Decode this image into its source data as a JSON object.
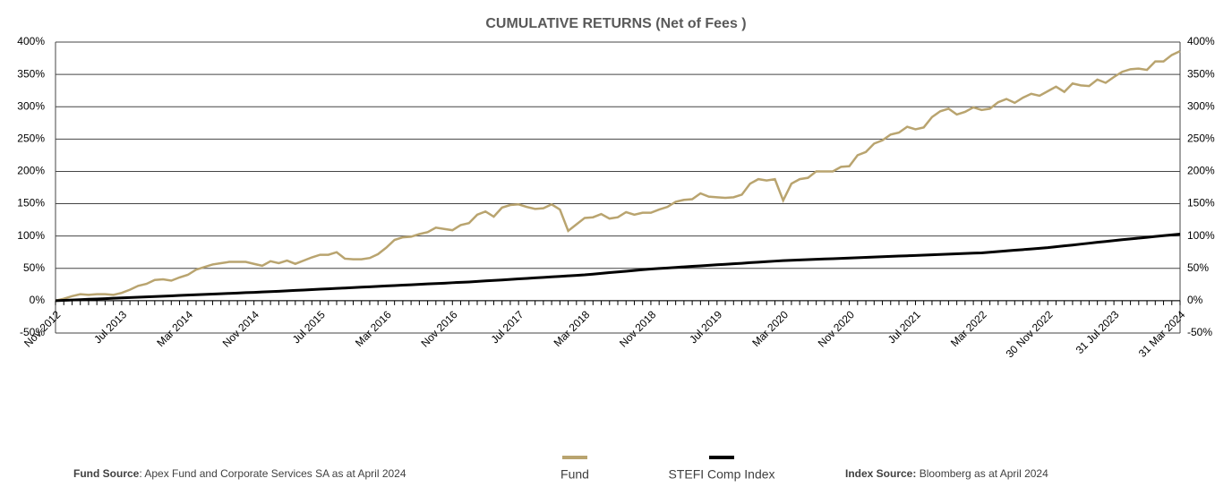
{
  "chart_data": {
    "type": "line",
    "title": "CUMULATIVE RETURNS (Net of Fees )",
    "categories": [
      "Nov 2012",
      null,
      null,
      null,
      null,
      null,
      null,
      null,
      "Jul 2013",
      null,
      null,
      null,
      null,
      null,
      null,
      null,
      "Mar 2014",
      null,
      null,
      null,
      null,
      null,
      null,
      null,
      "Nov 2014",
      null,
      null,
      null,
      null,
      null,
      null,
      null,
      "Jul 2015",
      null,
      null,
      null,
      null,
      null,
      null,
      null,
      "Mar 2016",
      null,
      null,
      null,
      null,
      null,
      null,
      null,
      "Nov 2016",
      null,
      null,
      null,
      null,
      null,
      null,
      null,
      "Jul 2017",
      null,
      null,
      null,
      null,
      null,
      null,
      null,
      "Mar 2018",
      null,
      null,
      null,
      null,
      null,
      null,
      null,
      "Nov 2018",
      null,
      null,
      null,
      null,
      null,
      null,
      null,
      "Jul 2019",
      null,
      null,
      null,
      null,
      null,
      null,
      null,
      "Mar 2020",
      null,
      null,
      null,
      null,
      null,
      null,
      null,
      "Nov 2020",
      null,
      null,
      null,
      null,
      null,
      null,
      null,
      "Jul 2021",
      null,
      null,
      null,
      null,
      null,
      null,
      null,
      "Mar 2022",
      null,
      null,
      null,
      null,
      null,
      null,
      null,
      "30 Nov 2022",
      null,
      null,
      null,
      null,
      null,
      null,
      null,
      "31 Jul 2023",
      null,
      null,
      null,
      null,
      null,
      null,
      null,
      "31 Mar 2024"
    ],
    "series": [
      {
        "name": "Fund",
        "color": "#b9a46f",
        "values": [
          0,
          3,
          7,
          10,
          9,
          10,
          10,
          9,
          12,
          17,
          23,
          26,
          32,
          33,
          31,
          36,
          40,
          48,
          52,
          56,
          58,
          60,
          60,
          60,
          57,
          54,
          61,
          58,
          62,
          57,
          62,
          67,
          71,
          71,
          75,
          65,
          64,
          64,
          66,
          72,
          82,
          94,
          98,
          99,
          103,
          106,
          113,
          111,
          109,
          117,
          120,
          133,
          138,
          130,
          144,
          148,
          149,
          145,
          142,
          143,
          149,
          141,
          108,
          118,
          128,
          129,
          134,
          127,
          129,
          137,
          133,
          136,
          136,
          141,
          145,
          153,
          156,
          157,
          166,
          161,
          160,
          159,
          160,
          164,
          181,
          188,
          186,
          188,
          155,
          181,
          188,
          190,
          200,
          200,
          200,
          207,
          208,
          225,
          230,
          243,
          248,
          257,
          260,
          269,
          265,
          268,
          284,
          293,
          297,
          288,
          292,
          299,
          295,
          297,
          307,
          312,
          306,
          314,
          320,
          317,
          324,
          331,
          323,
          336,
          333,
          332,
          342,
          337,
          346,
          354,
          358,
          359,
          357,
          370,
          370,
          380,
          386
        ]
      },
      {
        "name": "STEFI Comp Index",
        "color": "#000000",
        "values": [
          0,
          0.5,
          1.1,
          1.6,
          2.2,
          2.7,
          3.2,
          3.8,
          4.3,
          4.8,
          5.4,
          5.9,
          6.5,
          7,
          7.5,
          8.1,
          8.6,
          9.2,
          9.7,
          10.2,
          10.8,
          11.3,
          11.8,
          12.4,
          12.9,
          13.5,
          14,
          14.6,
          15.3,
          15.9,
          16.5,
          17.1,
          17.8,
          18.4,
          19,
          19.6,
          20.3,
          20.9,
          21.5,
          22.1,
          22.8,
          23.4,
          24,
          24.6,
          25.3,
          25.9,
          26.5,
          27.1,
          27.8,
          28.4,
          29,
          29.8,
          30.6,
          31.4,
          32.1,
          32.9,
          33.7,
          34.5,
          35.3,
          36.1,
          36.9,
          37.6,
          38.4,
          39.2,
          40,
          41.1,
          42.3,
          43.4,
          44.5,
          45.6,
          46.8,
          47.9,
          49,
          49.8,
          50.6,
          51.4,
          52.3,
          53.1,
          53.9,
          54.7,
          55.5,
          56.3,
          57.1,
          57.9,
          58.8,
          59.6,
          60.4,
          61.2,
          62,
          62.5,
          63,
          63.5,
          64,
          64.5,
          65,
          65.5,
          66,
          66.5,
          67,
          67.5,
          68,
          68.5,
          69,
          69.5,
          70,
          70.5,
          71,
          71.5,
          72,
          72.5,
          73,
          73.5,
          74,
          75,
          76,
          77,
          78,
          79,
          80,
          81,
          82,
          83.4,
          84.8,
          86.1,
          87.5,
          88.9,
          90.3,
          91.6,
          93,
          94.3,
          95.5,
          96.8,
          98,
          99.3,
          100.5,
          101.8,
          103
        ]
      }
    ],
    "ylim": [
      -50,
      400
    ],
    "yticks": [
      {
        "value": -50,
        "label": "-50%"
      },
      {
        "value": 0,
        "label": "0%"
      },
      {
        "value": 50,
        "label": "50%"
      },
      {
        "value": 100,
        "label": "100%"
      },
      {
        "value": 150,
        "label": "150%"
      },
      {
        "value": 200,
        "label": "200%"
      },
      {
        "value": 250,
        "label": "250%"
      },
      {
        "value": 300,
        "label": "300%"
      },
      {
        "value": 350,
        "label": "350%"
      },
      {
        "value": 400,
        "label": "400%"
      }
    ],
    "y2lim": [
      -50,
      400
    ],
    "y2ticks": [
      {
        "value": -50,
        "label": "-50%"
      },
      {
        "value": 0,
        "label": "0%"
      },
      {
        "value": 50,
        "label": "50%"
      },
      {
        "value": 100,
        "label": "100%"
      },
      {
        "value": 150,
        "label": "150%"
      },
      {
        "value": 200,
        "label": "200%"
      },
      {
        "value": 250,
        "label": "250%"
      },
      {
        "value": 300,
        "label": "300%"
      },
      {
        "value": 350,
        "label": "350%"
      },
      {
        "value": 400,
        "label": "400%"
      }
    ],
    "grid": true,
    "legend": "bottom",
    "footnotes": [
      {
        "label": "Fund Source",
        "text": ": Apex Fund and Corporate Services SA as at April 2024"
      },
      {
        "label": "Index Source:",
        "text": " Bloomberg as at April 2024"
      }
    ]
  }
}
